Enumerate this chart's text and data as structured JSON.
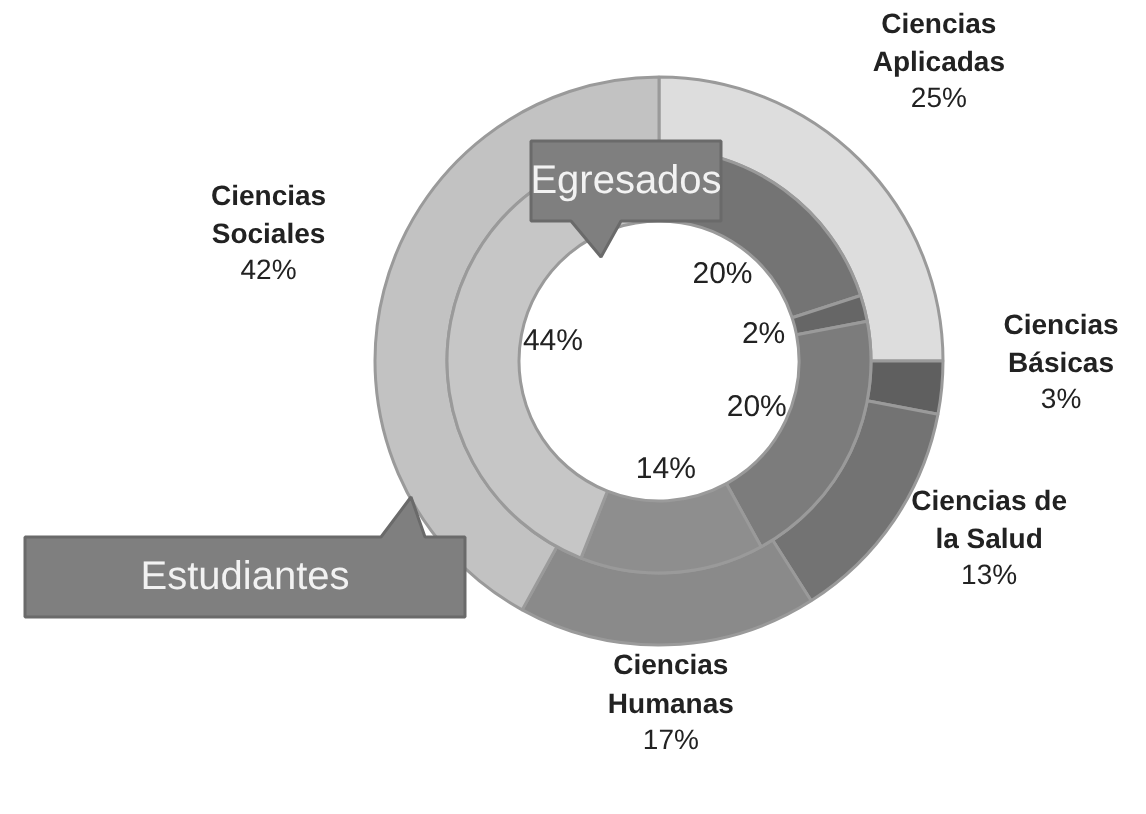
{
  "chart_data": {
    "type": "donut",
    "categories": [
      "Ciencias Aplicadas",
      "Ciencias Básicas",
      "Ciencias de la Salud",
      "Ciencias Humanas",
      "Ciencias Sociales"
    ],
    "series": [
      {
        "name": "Estudiantes",
        "values": [
          25,
          3,
          13,
          17,
          42
        ],
        "colors": [
          "#dddddd",
          "#5f5f5f",
          "#737373",
          "#8a8a8a",
          "#c2c2c2"
        ],
        "value_labels": [
          "25%",
          "3%",
          "13%",
          "17%",
          "42%"
        ]
      },
      {
        "name": "Egresados",
        "values": [
          20,
          2,
          20,
          14,
          44
        ],
        "colors": [
          "#747474",
          "#666666",
          "#7c7c7c",
          "#8e8e8e",
          "#c6c6c6"
        ],
        "value_labels": [
          "20%",
          "2%",
          "20%",
          "14%",
          "44%"
        ]
      }
    ],
    "data_labels": false
  }
}
